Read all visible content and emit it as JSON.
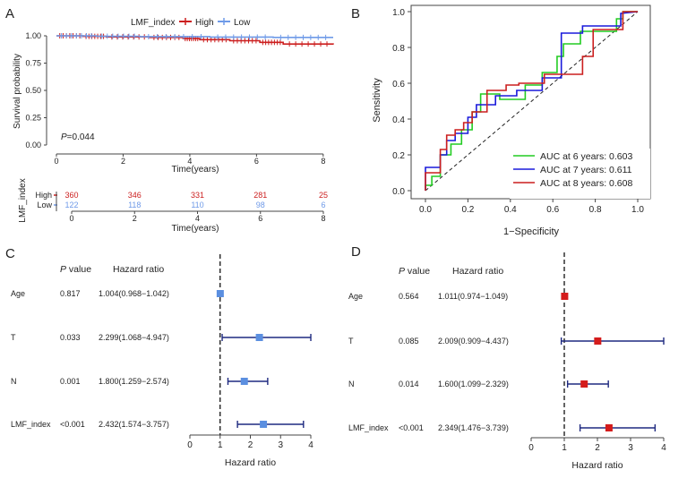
{
  "colors": {
    "high": "#cc1f1f",
    "low": "#6f9ae8",
    "roc6": "#22cc22",
    "roc7": "#1a1adb",
    "roc8": "#cc1f1f",
    "forest_c": "#5b8fe0",
    "forest_c_ci": "#1f2a80",
    "forest_d": "#d41c1c",
    "forest_d_ci": "#1f2a80",
    "axis": "#444444"
  },
  "chart_data": [
    {
      "panel": "A",
      "type": "line",
      "subtype": "kaplan-meier",
      "legend_title": "LMF_index",
      "legend_high": "High",
      "legend_low": "Low",
      "ylabel": "Survival probability",
      "xlabel": "Time(years)",
      "xlim": [
        0,
        8.3
      ],
      "ylim": [
        0,
        1
      ],
      "xticks": [
        "0",
        "2",
        "4",
        "6",
        "8"
      ],
      "yticks": [
        "0.00",
        "0.25",
        "0.50",
        "0.75",
        "1.00"
      ],
      "pvalue_label": "P",
      "pvalue_text": "=0.044",
      "series": [
        {
          "name": "High",
          "x": [
            0,
            0.8,
            1.5,
            2.8,
            3.8,
            4.3,
            5.2,
            6.1,
            6.8,
            8.3
          ],
          "y": [
            1.0,
            0.995,
            0.99,
            0.985,
            0.975,
            0.965,
            0.955,
            0.94,
            0.925,
            0.92
          ]
        },
        {
          "name": "Low",
          "x": [
            0,
            1.2,
            2.5,
            4.6,
            6.5,
            8.3
          ],
          "y": [
            1.0,
            0.996,
            0.992,
            0.988,
            0.985,
            0.985
          ]
        }
      ]
    },
    {
      "panel": "A-risk-table",
      "type": "table",
      "ylabel": "LMF_index",
      "xlabel": "Time(years)",
      "xticks": [
        "0",
        "2",
        "4",
        "6",
        "8"
      ],
      "rows": [
        {
          "name": "High",
          "values": [
            "360",
            "346",
            "331",
            "281",
            "25"
          ]
        },
        {
          "name": "Low",
          "values": [
            "122",
            "118",
            "110",
            "98",
            "6"
          ]
        }
      ]
    },
    {
      "panel": "B",
      "type": "line",
      "subtype": "roc",
      "xlabel": "1−Specificity",
      "ylabel": "Sensitivity",
      "xlim": [
        0,
        1
      ],
      "ylim": [
        0,
        1
      ],
      "xticks": [
        "0.0",
        "0.2",
        "0.4",
        "0.6",
        "0.8",
        "1.0"
      ],
      "yticks": [
        "0.0",
        "0.2",
        "0.4",
        "0.6",
        "0.8",
        "1.0"
      ],
      "series": [
        {
          "name": "AUC at 6 years: 0.603",
          "x": [
            0,
            0,
            0.03,
            0.03,
            0.07,
            0.07,
            0.12,
            0.12,
            0.17,
            0.17,
            0.22,
            0.22,
            0.26,
            0.26,
            0.35,
            0.35,
            0.47,
            0.47,
            0.55,
            0.55,
            0.62,
            0.62,
            0.65,
            0.65,
            0.73,
            0.73,
            0.9,
            0.9,
            0.93,
            0.93,
            1
          ],
          "y": [
            0,
            0.03,
            0.03,
            0.08,
            0.08,
            0.2,
            0.2,
            0.26,
            0.26,
            0.34,
            0.34,
            0.44,
            0.44,
            0.54,
            0.54,
            0.51,
            0.51,
            0.59,
            0.59,
            0.66,
            0.66,
            0.75,
            0.75,
            0.82,
            0.82,
            0.89,
            0.89,
            0.96,
            0.96,
            1,
            1
          ]
        },
        {
          "name": "AUC at 7 years: 0.611",
          "x": [
            0,
            0,
            0.07,
            0.07,
            0.1,
            0.1,
            0.14,
            0.14,
            0.2,
            0.2,
            0.24,
            0.24,
            0.33,
            0.33,
            0.43,
            0.43,
            0.55,
            0.55,
            0.64,
            0.64,
            0.74,
            0.74,
            0.92,
            0.92,
            1
          ],
          "y": [
            0,
            0.13,
            0.13,
            0.2,
            0.2,
            0.28,
            0.28,
            0.32,
            0.32,
            0.41,
            0.41,
            0.48,
            0.48,
            0.53,
            0.53,
            0.56,
            0.56,
            0.63,
            0.63,
            0.88,
            0.88,
            0.92,
            0.92,
            0.99,
            1
          ]
        },
        {
          "name": "AUC at 8 years: 0.608",
          "x": [
            0,
            0,
            0.07,
            0.07,
            0.1,
            0.1,
            0.14,
            0.14,
            0.18,
            0.18,
            0.22,
            0.22,
            0.29,
            0.29,
            0.38,
            0.38,
            0.44,
            0.44,
            0.56,
            0.56,
            0.74,
            0.74,
            0.79,
            0.79,
            0.93,
            0.93,
            1
          ],
          "y": [
            0,
            0.1,
            0.1,
            0.23,
            0.23,
            0.31,
            0.31,
            0.34,
            0.34,
            0.38,
            0.38,
            0.44,
            0.44,
            0.56,
            0.56,
            0.59,
            0.59,
            0.6,
            0.6,
            0.65,
            0.65,
            0.75,
            0.75,
            0.9,
            0.9,
            1,
            1
          ]
        }
      ]
    },
    {
      "panel": "C",
      "type": "scatter",
      "subtype": "forest",
      "xlabel": "Hazard ratio",
      "col_pvalue_label": "P",
      "col_pvalue_text": " value",
      "col_hr": "Hazard ratio",
      "xlim": [
        0,
        4
      ],
      "ref_line": 1,
      "xticks": [
        "0",
        "1",
        "2",
        "3",
        "4"
      ],
      "rows": [
        {
          "name": "Age",
          "p": "0.817",
          "hr_text": "1.004(0.968−1.042)",
          "hr": 1.004,
          "lo": 0.968,
          "hi": 1.042,
          "arrow": false
        },
        {
          "name": "T",
          "p": "0.033",
          "hr_text": "2.299(1.068−4.947)",
          "hr": 2.299,
          "lo": 1.068,
          "hi": 4.947,
          "arrow": true
        },
        {
          "name": "N",
          "p": "0.001",
          "hr_text": "1.800(1.259−2.574)",
          "hr": 1.8,
          "lo": 1.259,
          "hi": 2.574,
          "arrow": false
        },
        {
          "name": "LMF_index",
          "p": "<0.001",
          "hr_text": "2.432(1.574−3.757)",
          "hr": 2.432,
          "lo": 1.574,
          "hi": 3.757,
          "arrow": false
        }
      ]
    },
    {
      "panel": "D",
      "type": "scatter",
      "subtype": "forest",
      "xlabel": "Hazard ratio",
      "col_pvalue_label": "P",
      "col_pvalue_text": " value",
      "col_hr": "Hazard ratio",
      "xlim": [
        0,
        4
      ],
      "ref_line": 1,
      "xticks": [
        "0",
        "1",
        "2",
        "3",
        "4"
      ],
      "rows": [
        {
          "name": "Age",
          "p": "0.564",
          "hr_text": "1.011(0.974−1.049)",
          "hr": 1.011,
          "lo": 0.974,
          "hi": 1.049,
          "arrow": false
        },
        {
          "name": "T",
          "p": "0.085",
          "hr_text": "2.009(0.909−4.437)",
          "hr": 2.009,
          "lo": 0.909,
          "hi": 4.437,
          "arrow": true
        },
        {
          "name": "N",
          "p": "0.014",
          "hr_text": "1.600(1.099−2.329)",
          "hr": 1.6,
          "lo": 1.099,
          "hi": 2.329,
          "arrow": false
        },
        {
          "name": "LMF_index",
          "p": "<0.001",
          "hr_text": "2.349(1.476−3.739)",
          "hr": 2.349,
          "lo": 1.476,
          "hi": 3.739,
          "arrow": false
        }
      ]
    }
  ]
}
